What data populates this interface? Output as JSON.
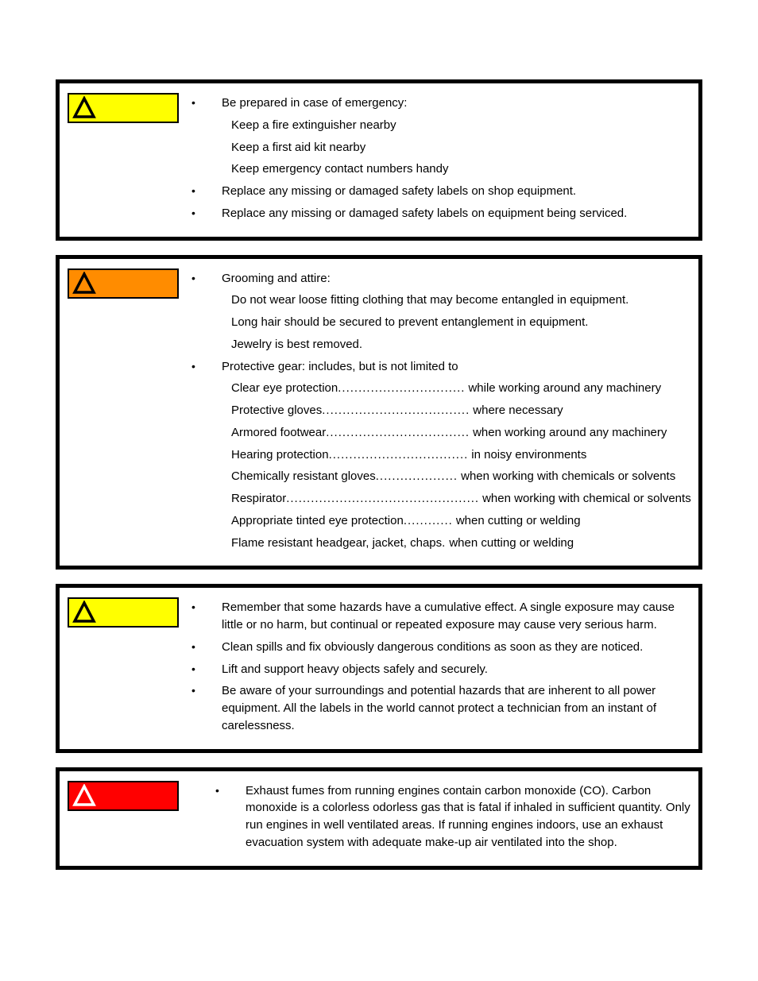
{
  "colors": {
    "caution": "#ffff00",
    "warning": "#ff8c00",
    "danger": "#ff0000",
    "border": "#000000",
    "triangle_dark": "#000000",
    "triangle_light": "#ffffff"
  },
  "blocks": [
    {
      "badge_color": "caution",
      "triangle": "dark",
      "items": [
        {
          "text": "Be prepared in case of emergency:",
          "sub": [
            "Keep a fire extinguisher nearby",
            "Keep a  first aid kit nearby",
            "Keep emergency contact numbers handy"
          ]
        },
        {
          "text": "Replace any missing or damaged safety labels on shop equipment."
        },
        {
          "text": "Replace any missing or damaged safety labels on equipment being serviced."
        }
      ]
    },
    {
      "badge_color": "warning",
      "triangle": "dark",
      "items": [
        {
          "text": "Grooming and attire:",
          "sub": [
            "Do not wear loose fitting clothing that may become entangled in equipment.",
            "Long hair should be secured to prevent entanglement in equipment.",
            "Jewelry is best removed."
          ]
        },
        {
          "text": "Protective gear:  includes, but is not limited to",
          "gear": [
            {
              "label": "Clear eye protection",
              "dots": "...............................",
              "cond": "while working around any machinery"
            },
            {
              "label": "Protective gloves",
              "dots": "....................................",
              "cond": "where necessary"
            },
            {
              "label": "Armored footwear",
              "dots": "...................................",
              "cond": "when working around any machinery"
            },
            {
              "label": "Hearing protection",
              "dots": "..................................",
              "cond": "in noisy environments"
            },
            {
              "label": "Chemically resistant gloves",
              "dots": "....................",
              "cond": "when working with chemicals or solvents"
            },
            {
              "label": "Respirator",
              "dots": "...............................................",
              "cond": "when working with chemical or solvents"
            },
            {
              "label": "Appropriate tinted eye protection",
              "dots": "............",
              "cond": "when cutting or welding"
            },
            {
              "label": "Flame resistant headgear, jacket, chaps",
              "dots": ".",
              "cond": "when cutting or welding"
            }
          ]
        }
      ]
    },
    {
      "badge_color": "caution",
      "triangle": "dark",
      "items": [
        {
          "text": "Remember that some hazards have a cumulative effect.  A single exposure may cause little or no harm, but continual or repeated exposure may cause very serious harm."
        },
        {
          "text": "Clean spills and fix obviously dangerous conditions as soon as they are noticed."
        },
        {
          "text": "Lift and support heavy objects safely and securely."
        },
        {
          "text": "Be aware of your surroundings and potential hazards that are inherent to all power equipment. All the labels in the world cannot protect a technician from an instant of carelessness."
        }
      ]
    },
    {
      "badge_color": "danger",
      "triangle": "light",
      "items": [
        {
          "text": "Exhaust fumes from running engines contain carbon monoxide (CO). Carbon monoxide is a colorless odorless gas that is fatal if inhaled in sufficient quantity. Only run engines in well ventilated areas. If running engines indoors, use an exhaust evacuation system with adequate make-up air ventilated into the shop."
        }
      ],
      "indent": true
    }
  ]
}
